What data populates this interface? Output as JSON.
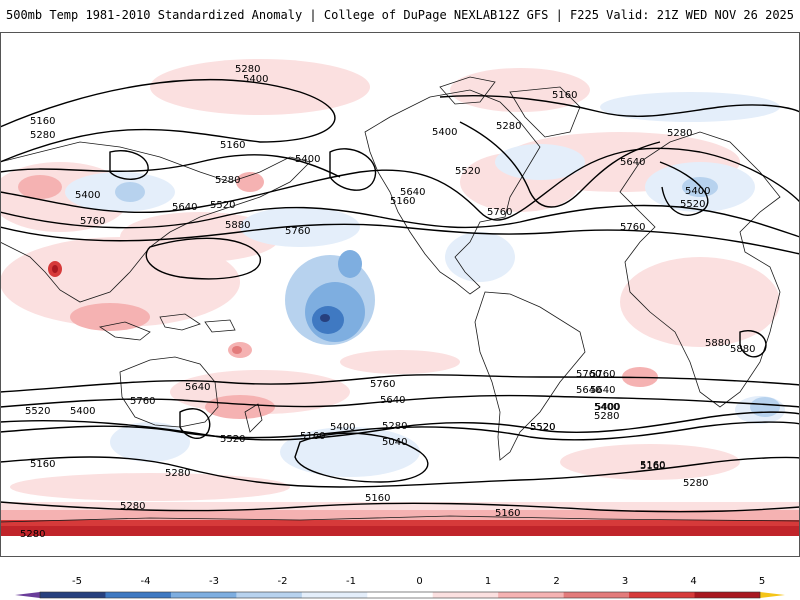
{
  "header": {
    "title": "500mb Temp 1981-2010 Standardized Anomaly | College of DuPage NEXLAB",
    "model_info": "12Z GFS | F225 Valid: 21Z WED NOV 26 2025"
  },
  "colorbar": {
    "ticks": [
      "-5",
      "-4",
      "-3",
      "-2",
      "-1",
      "0",
      "1",
      "2",
      "3",
      "4",
      "5"
    ],
    "colors": [
      "#6a3d9a",
      "#27407e",
      "#3f79c2",
      "#7eaee0",
      "#b7d2ee",
      "#e4eefa",
      "#ffffff",
      "#fbe0e0",
      "#f5b2b2",
      "#e37b7b",
      "#d63a3a",
      "#a81820",
      "#f5c518"
    ]
  },
  "contour_labels": [
    {
      "value": "5280"
    },
    {
      "value": "5400"
    },
    {
      "value": "5160"
    },
    {
      "value": "5280"
    },
    {
      "value": "5160"
    },
    {
      "value": "5400"
    },
    {
      "value": "5400"
    },
    {
      "value": "5280"
    },
    {
      "value": "5520"
    },
    {
      "value": "5640"
    },
    {
      "value": "5760"
    },
    {
      "value": "5880"
    },
    {
      "value": "5760"
    },
    {
      "value": "5160"
    },
    {
      "value": "5400"
    },
    {
      "value": "5280"
    },
    {
      "value": "5520"
    },
    {
      "value": "5640"
    },
    {
      "value": "5760"
    },
    {
      "value": "5160"
    },
    {
      "value": "5280"
    },
    {
      "value": "5640"
    },
    {
      "value": "5400"
    },
    {
      "value": "5520"
    },
    {
      "value": "5760"
    },
    {
      "value": "5880"
    },
    {
      "value": "5880"
    },
    {
      "value": "5760"
    },
    {
      "value": "5640"
    },
    {
      "value": "5520"
    },
    {
      "value": "5400"
    },
    {
      "value": "5160"
    },
    {
      "value": "5640"
    },
    {
      "value": "5760"
    },
    {
      "value": "5520"
    },
    {
      "value": "5400"
    },
    {
      "value": "5520"
    },
    {
      "value": "5160"
    },
    {
      "value": "5280"
    },
    {
      "value": "5280"
    },
    {
      "value": "5760"
    },
    {
      "value": "5640"
    },
    {
      "value": "5400"
    },
    {
      "value": "5280"
    },
    {
      "value": "5160"
    },
    {
      "value": "5040"
    },
    {
      "value": "5160"
    },
    {
      "value": "5160"
    },
    {
      "value": "5520"
    },
    {
      "value": "5760"
    },
    {
      "value": "5640"
    },
    {
      "value": "5400"
    },
    {
      "value": "5280"
    },
    {
      "value": "5160"
    },
    {
      "value": "5280"
    },
    {
      "value": "5280"
    }
  ]
}
